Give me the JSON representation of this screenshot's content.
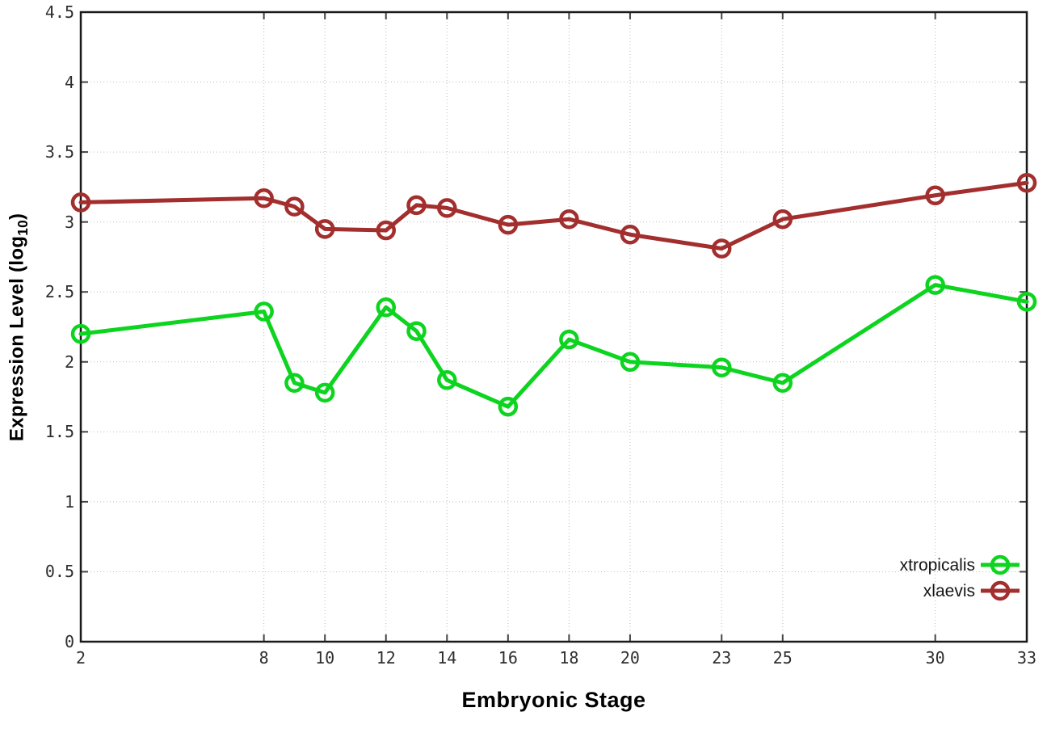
{
  "chart_data": {
    "type": "line",
    "title": "",
    "xlabel": "Embryonic Stage",
    "ylabel": "Expression Level (log10)",
    "ylabel_parts": {
      "main": "Expression Level (log",
      "sub": "10",
      "close": ")"
    },
    "x": [
      2,
      8,
      9,
      10,
      12,
      13,
      14,
      16,
      18,
      20,
      23,
      25,
      30,
      33
    ],
    "series": [
      {
        "name": "xtropicalis",
        "color": "#0cd41f",
        "marker": "open-circle",
        "values": [
          2.2,
          2.36,
          1.85,
          1.78,
          2.39,
          2.22,
          1.87,
          1.68,
          2.16,
          2.0,
          1.96,
          1.85,
          2.55,
          2.43
        ]
      },
      {
        "name": "xlaevis",
        "color": "#a32e2e",
        "marker": "open-circle",
        "values": [
          3.14,
          3.17,
          3.11,
          2.95,
          2.94,
          3.12,
          3.1,
          2.98,
          3.02,
          2.91,
          2.81,
          3.02,
          3.19,
          3.28
        ]
      }
    ],
    "xlim": [
      2,
      33
    ],
    "ylim": [
      0,
      4.5
    ],
    "x_ticks": [
      2,
      8,
      10,
      12,
      14,
      16,
      18,
      20,
      23,
      25,
      30,
      33
    ],
    "y_ticks": [
      0,
      0.5,
      1,
      1.5,
      2,
      2.5,
      3,
      3.5,
      4,
      4.5
    ],
    "grid": true,
    "legend_position": "inside-bottom-right"
  },
  "colors": {
    "background": "#ffffff",
    "border": "#1a1a1a",
    "grid": "#bcbcbc",
    "tick_mark": "#444444",
    "tick_text": "#2e2e2e",
    "legend_text": "#141414"
  }
}
